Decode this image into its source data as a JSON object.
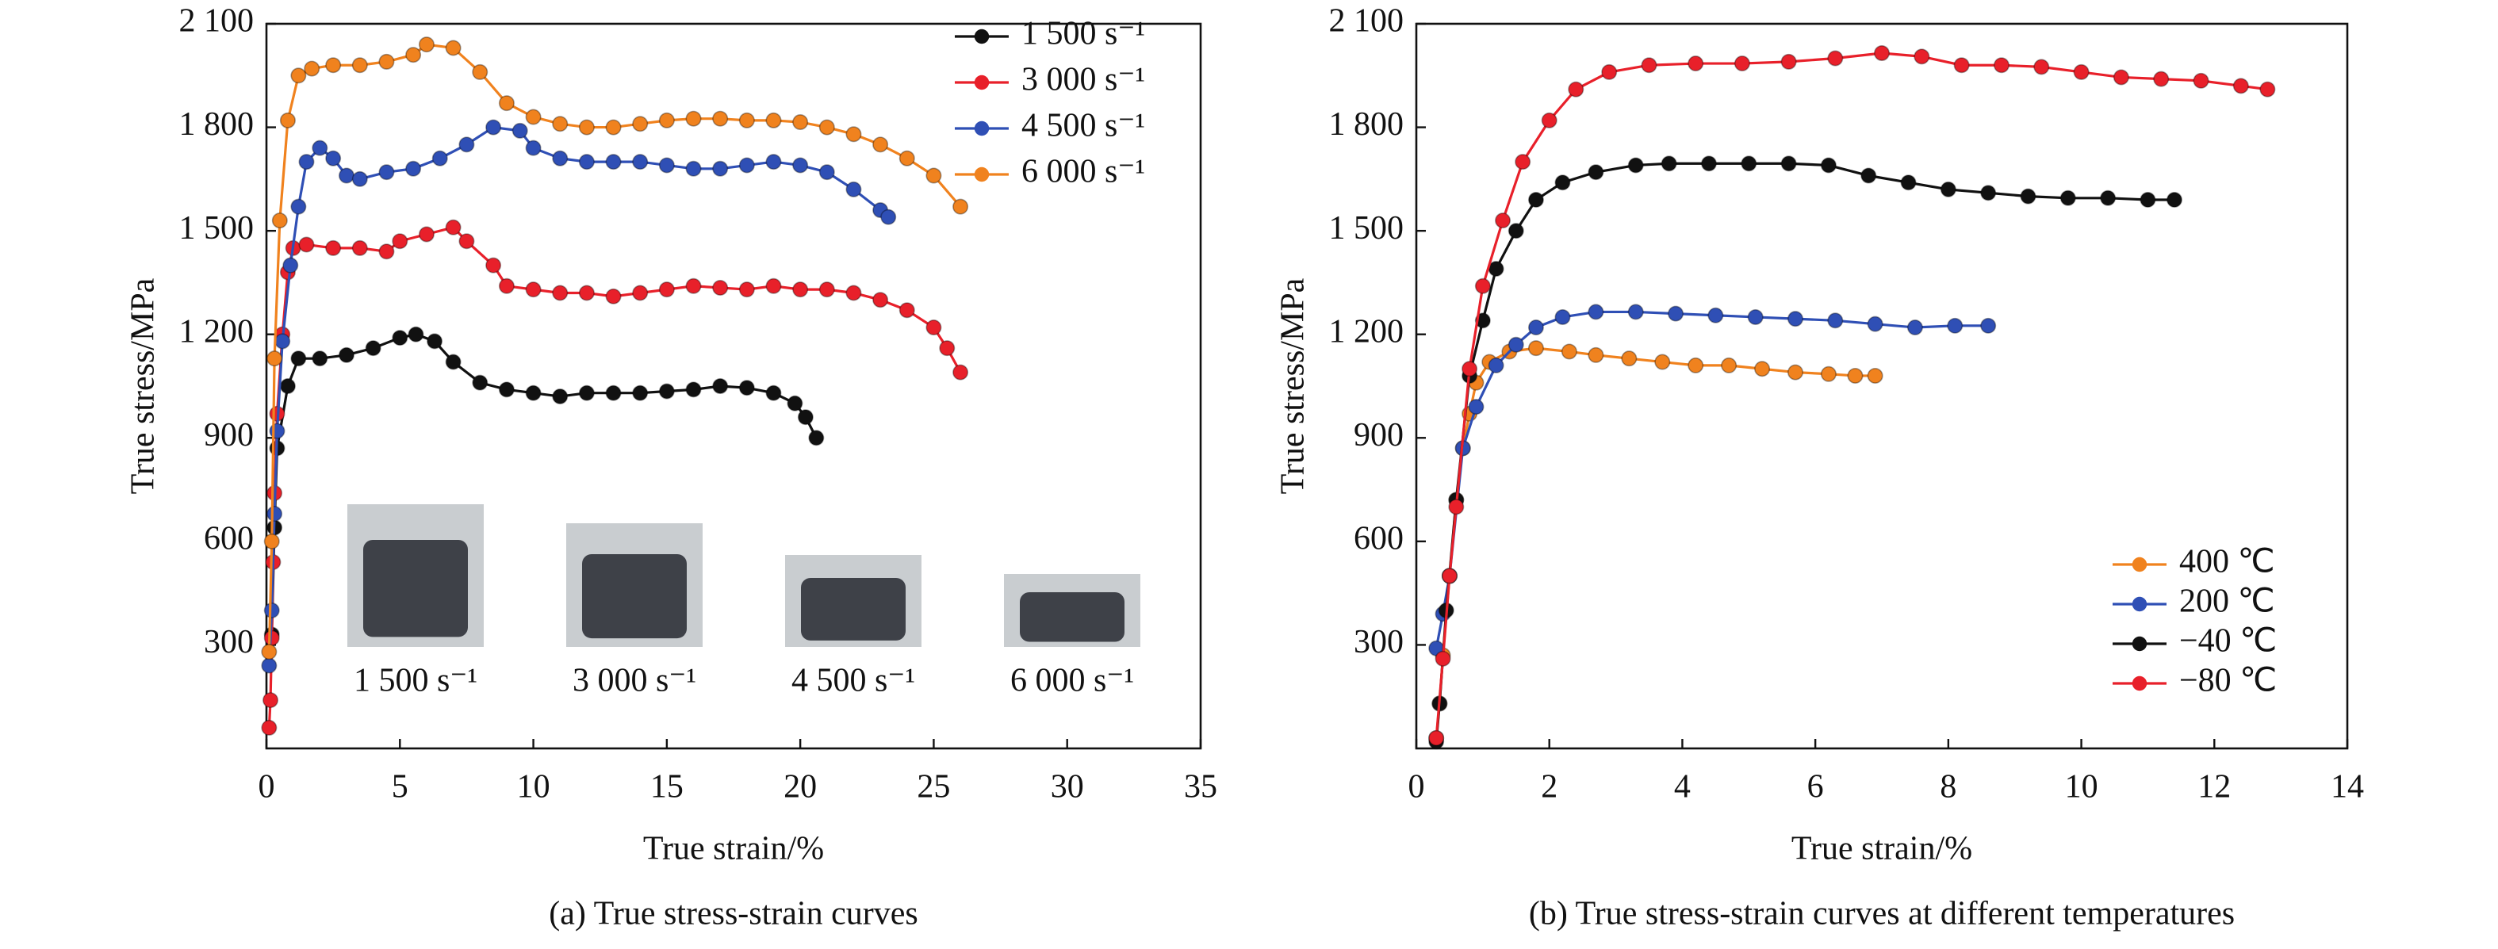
{
  "chart_data": [
    {
      "type": "line",
      "title": "(a) True stress-strain curves",
      "xlabel": "True strain/%",
      "ylabel": "True stress/MPa",
      "xlim": [
        0,
        35
      ],
      "xticks": [
        0,
        5,
        10,
        15,
        20,
        25,
        30,
        35
      ],
      "ylim": [
        0,
        2100
      ],
      "yticks": [
        300,
        600,
        900,
        {
          "value": 1200,
          "label": "1 200"
        },
        {
          "value": 1500,
          "label": "1 500"
        },
        {
          "value": 1800,
          "label": "1 800"
        },
        {
          "value": 2100,
          "label": "2 100"
        }
      ],
      "legend": "upper right",
      "annotations": [
        "1 500 s⁻¹",
        "3 000 s⁻¹",
        "4 500 s⁻¹",
        "6 000 s⁻¹"
      ],
      "series": [
        {
          "name": "1 500 s⁻¹",
          "color": "#111111",
          "x": [
            0.2,
            0.3,
            0.4,
            0.8,
            1.2,
            2,
            3,
            4,
            5,
            5.6,
            6.3,
            7,
            8,
            9,
            10,
            11,
            12,
            13,
            14,
            15,
            16,
            17,
            18,
            19,
            19.8,
            20.2,
            20.6
          ],
          "values": [
            330,
            640,
            870,
            1050,
            1130,
            1130,
            1140,
            1160,
            1190,
            1200,
            1180,
            1120,
            1060,
            1040,
            1030,
            1020,
            1030,
            1030,
            1030,
            1035,
            1040,
            1050,
            1045,
            1030,
            1000,
            960,
            900
          ]
        },
        {
          "name": "3 000 s⁻¹",
          "color": "#e8202a",
          "x": [
            0.1,
            0.15,
            0.2,
            0.25,
            0.3,
            0.4,
            0.6,
            0.8,
            1,
            1.5,
            2.5,
            3.5,
            4.5,
            5,
            6,
            7,
            7.5,
            8.5,
            9,
            10,
            11,
            12,
            13,
            14,
            15,
            16,
            17,
            18,
            19,
            20,
            21,
            22,
            23,
            24,
            25,
            25.5,
            26
          ],
          "values": [
            60,
            140,
            320,
            540,
            740,
            970,
            1200,
            1380,
            1450,
            1460,
            1450,
            1450,
            1440,
            1470,
            1490,
            1510,
            1470,
            1400,
            1340,
            1330,
            1320,
            1320,
            1310,
            1320,
            1330,
            1340,
            1335,
            1330,
            1340,
            1330,
            1330,
            1320,
            1300,
            1270,
            1220,
            1160,
            1090
          ]
        },
        {
          "name": "4 500 s⁻¹",
          "color": "#2f4fb5",
          "x": [
            0.1,
            0.2,
            0.3,
            0.4,
            0.6,
            0.9,
            1.2,
            1.5,
            2,
            2.5,
            3,
            3.5,
            4.5,
            5.5,
            6.5,
            7.5,
            8.5,
            9.5,
            10,
            11,
            12,
            13,
            14,
            15,
            16,
            17,
            18,
            19,
            20,
            21,
            22,
            23,
            23.3
          ],
          "values": [
            240,
            400,
            680,
            920,
            1180,
            1400,
            1570,
            1700,
            1740,
            1710,
            1660,
            1650,
            1670,
            1680,
            1710,
            1750,
            1800,
            1790,
            1740,
            1710,
            1700,
            1700,
            1700,
            1690,
            1680,
            1680,
            1690,
            1700,
            1690,
            1670,
            1620,
            1560,
            1540
          ]
        },
        {
          "name": "6 000 s⁻¹",
          "color": "#f0821e",
          "x": [
            0.1,
            0.2,
            0.3,
            0.5,
            0.8,
            1.2,
            1.7,
            2.5,
            3.5,
            4.5,
            5.5,
            6,
            7,
            8,
            9,
            10,
            11,
            12,
            13,
            14,
            15,
            16,
            17,
            18,
            19,
            20,
            21,
            22,
            23,
            24,
            25,
            26
          ],
          "values": [
            280,
            600,
            1130,
            1530,
            1820,
            1950,
            1970,
            1980,
            1980,
            1990,
            2010,
            2040,
            2030,
            1960,
            1870,
            1830,
            1810,
            1800,
            1800,
            1810,
            1820,
            1825,
            1825,
            1820,
            1820,
            1815,
            1800,
            1780,
            1750,
            1710,
            1660,
            1570
          ]
        }
      ]
    },
    {
      "type": "line",
      "title": "(b) True stress-strain curves at different temperatures",
      "xlabel": "True strain/%",
      "ylabel": "True stress/MPa",
      "xlim": [
        0,
        14
      ],
      "xticks": [
        0,
        2,
        4,
        6,
        8,
        10,
        12,
        14
      ],
      "ylim": [
        0,
        2100
      ],
      "yticks": [
        300,
        600,
        900,
        {
          "value": 1200,
          "label": "1 200"
        },
        {
          "value": 1500,
          "label": "1 500"
        },
        {
          "value": 1800,
          "label": "1 800"
        },
        {
          "value": 2100,
          "label": "2 100"
        }
      ],
      "legend": "lower right",
      "series": [
        {
          "name": "400 ℃",
          "color": "#f0821e",
          "x": [
            0.3,
            0.35,
            0.4,
            0.5,
            0.6,
            0.7,
            0.8,
            0.9,
            1.1,
            1.4,
            1.8,
            2.3,
            2.7,
            3.2,
            3.7,
            4.2,
            4.7,
            5.2,
            5.7,
            6.2,
            6.6,
            6.9
          ],
          "values": [
            30,
            130,
            270,
            500,
            720,
            870,
            970,
            1060,
            1120,
            1150,
            1160,
            1150,
            1140,
            1130,
            1120,
            1110,
            1110,
            1100,
            1090,
            1085,
            1080,
            1080
          ]
        },
        {
          "name": "200 ℃",
          "color": "#2f4fb5",
          "x": [
            0.3,
            0.4,
            0.5,
            0.7,
            0.9,
            1.2,
            1.5,
            1.8,
            2.2,
            2.7,
            3.3,
            3.9,
            4.5,
            5.1,
            5.7,
            6.3,
            6.9,
            7.5,
            8.1,
            8.6
          ],
          "values": [
            290,
            390,
            500,
            870,
            990,
            1110,
            1170,
            1220,
            1250,
            1265,
            1265,
            1260,
            1255,
            1250,
            1245,
            1240,
            1230,
            1220,
            1225,
            1225
          ]
        },
        {
          "name": "−40 ℃",
          "color": "#111111",
          "x": [
            0.3,
            0.35,
            0.45,
            0.6,
            0.8,
            1,
            1.2,
            1.5,
            1.8,
            2.2,
            2.7,
            3.3,
            3.8,
            4.4,
            5,
            5.6,
            6.2,
            6.8,
            7.4,
            8,
            8.6,
            9.2,
            9.8,
            10.4,
            11,
            11.4
          ],
          "values": [
            20,
            130,
            400,
            720,
            1080,
            1240,
            1390,
            1500,
            1590,
            1640,
            1670,
            1690,
            1695,
            1695,
            1695,
            1695,
            1690,
            1660,
            1640,
            1620,
            1610,
            1600,
            1595,
            1595,
            1590,
            1590
          ]
        },
        {
          "name": "−80 ℃",
          "color": "#e8202a",
          "x": [
            0.3,
            0.4,
            0.5,
            0.6,
            0.8,
            1,
            1.3,
            1.6,
            2,
            2.4,
            2.9,
            3.5,
            4.2,
            4.9,
            5.6,
            6.3,
            7,
            7.6,
            8.2,
            8.8,
            9.4,
            10,
            10.6,
            11.2,
            11.8,
            12.4,
            12.8
          ],
          "values": [
            30,
            260,
            500,
            700,
            1100,
            1340,
            1530,
            1700,
            1820,
            1910,
            1960,
            1980,
            1985,
            1985,
            1990,
            2000,
            2015,
            2005,
            1980,
            1980,
            1975,
            1960,
            1945,
            1940,
            1935,
            1920,
            1910
          ]
        }
      ]
    }
  ]
}
